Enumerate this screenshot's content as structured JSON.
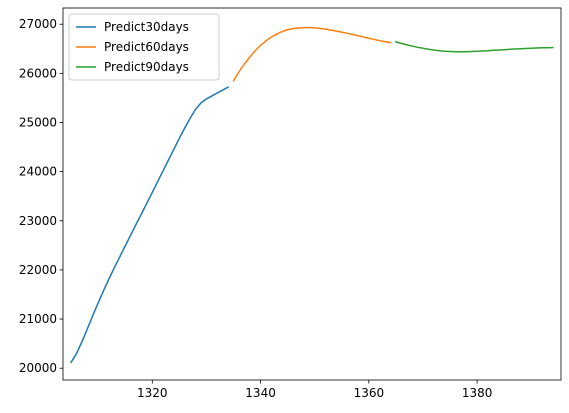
{
  "chart_data": {
    "type": "line",
    "title": "",
    "xlabel": "",
    "ylabel": "",
    "xlim": [
      1303.5,
      1395.5
    ],
    "ylim": [
      19760,
      27330
    ],
    "x_ticks": [
      1320,
      1340,
      1360,
      1380
    ],
    "x_tick_labels": [
      "1320",
      "1340",
      "1360",
      "1380"
    ],
    "y_ticks": [
      20000,
      21000,
      22000,
      23000,
      24000,
      25000,
      26000,
      27000
    ],
    "y_tick_labels": [
      "20000",
      "21000",
      "22000",
      "23000",
      "24000",
      "25000",
      "26000",
      "27000"
    ],
    "grid": false,
    "legend_position": "upper left",
    "series": [
      {
        "name": "Predict30days",
        "color": "#1f77b4",
        "x": [
          1305,
          1306,
          1307,
          1308,
          1309,
          1310,
          1311,
          1312,
          1313,
          1314,
          1315,
          1316,
          1317,
          1318,
          1319,
          1320,
          1321,
          1322,
          1323,
          1324,
          1325,
          1326,
          1327,
          1328,
          1329,
          1330,
          1331,
          1332,
          1333,
          1334
        ],
        "y": [
          20120,
          20300,
          20540,
          20800,
          21070,
          21330,
          21580,
          21820,
          22050,
          22270,
          22490,
          22710,
          22930,
          23140,
          23360,
          23580,
          23800,
          24020,
          24240,
          24460,
          24680,
          24890,
          25090,
          25270,
          25400,
          25480,
          25540,
          25600,
          25660,
          25720
        ]
      },
      {
        "name": "Predict60days",
        "color": "#ff7f0e",
        "x": [
          1335,
          1336,
          1337,
          1338,
          1339,
          1340,
          1341,
          1342,
          1343,
          1344,
          1345,
          1346,
          1347,
          1348,
          1349,
          1350,
          1351,
          1352,
          1353,
          1354,
          1355,
          1356,
          1357,
          1358,
          1359,
          1360,
          1361,
          1362,
          1363,
          1364
        ],
        "y": [
          25850,
          26030,
          26190,
          26330,
          26460,
          26570,
          26660,
          26740,
          26800,
          26850,
          26890,
          26910,
          26925,
          26930,
          26930,
          26925,
          26915,
          26900,
          26880,
          26860,
          26840,
          26815,
          26790,
          26765,
          26740,
          26715,
          26690,
          26665,
          26645,
          26625
        ]
      },
      {
        "name": "Predict90days",
        "color": "#2ca02c",
        "x": [
          1365,
          1366,
          1367,
          1368,
          1369,
          1370,
          1371,
          1372,
          1373,
          1374,
          1375,
          1376,
          1377,
          1378,
          1379,
          1380,
          1381,
          1382,
          1383,
          1384,
          1385,
          1386,
          1387,
          1388,
          1389,
          1390,
          1391,
          1392,
          1393,
          1394
        ],
        "y": [
          26640,
          26610,
          26580,
          26555,
          26530,
          26510,
          26490,
          26475,
          26460,
          26450,
          26445,
          26440,
          26440,
          26440,
          26445,
          26450,
          26455,
          26460,
          26470,
          26475,
          26480,
          26490,
          26495,
          26500,
          26505,
          26510,
          26515,
          26520,
          26520,
          26525
        ]
      }
    ]
  }
}
